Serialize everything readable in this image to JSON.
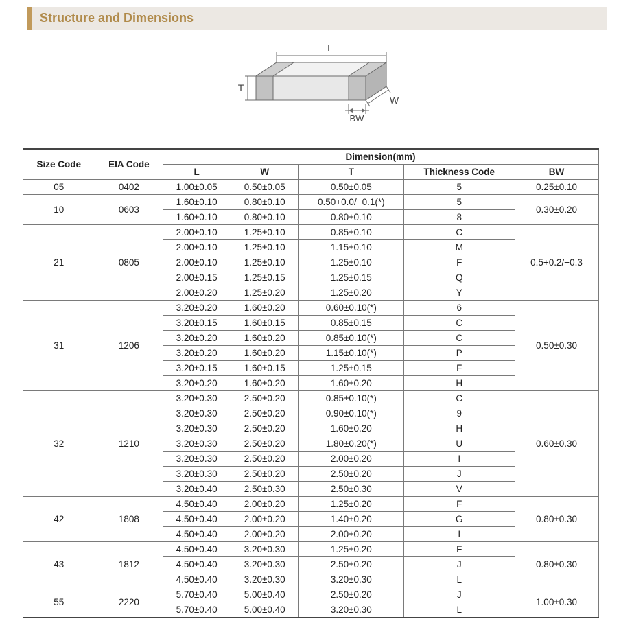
{
  "section_title": "Structure and Dimensions",
  "diagram": {
    "labels": {
      "L": "L",
      "W": "W",
      "T": "T",
      "BW": "BW"
    },
    "stroke": "#6b6b6b",
    "fill_top": "#f2f2f2",
    "fill_front": "#e8e8e8",
    "fill_side": "#dcdcdc",
    "fill_term_top": "#cfcfcf",
    "fill_term_front": "#c2c2c2",
    "fill_term_side": "#b5b5b5"
  },
  "table": {
    "header": {
      "size_code": "Size Code",
      "eia_code": "EIA Code",
      "dimension_group": "Dimension(mm)",
      "L": "L",
      "W": "W",
      "T": "T",
      "thick": "Thickness  Code",
      "BW": "BW"
    },
    "groups": [
      {
        "size": "05",
        "eia": "0402",
        "bw": "0.25±0.10",
        "rows": [
          {
            "L": "1.00±0.05",
            "W": "0.50±0.05",
            "T": "0.50±0.05",
            "code": "5"
          }
        ]
      },
      {
        "size": "10",
        "eia": "0603",
        "bw": "0.30±0.20",
        "rows": [
          {
            "L": "1.60±0.10",
            "W": "0.80±0.10",
            "T": "0.50+0.0/−0.1(*)",
            "code": "5"
          },
          {
            "L": "1.60±0.10",
            "W": "0.80±0.10",
            "T": "0.80±0.10",
            "code": "8"
          }
        ]
      },
      {
        "size": "21",
        "eia": "0805",
        "bw": "0.5+0.2/−0.3",
        "rows": [
          {
            "L": "2.00±0.10",
            "W": "1.25±0.10",
            "T": "0.85±0.10",
            "code": "C"
          },
          {
            "L": "2.00±0.10",
            "W": "1.25±0.10",
            "T": "1.15±0.10",
            "code": "M"
          },
          {
            "L": "2.00±0.10",
            "W": "1.25±0.10",
            "T": "1.25±0.10",
            "code": "F"
          },
          {
            "L": "2.00±0.15",
            "W": "1.25±0.15",
            "T": "1.25±0.15",
            "code": "Q"
          },
          {
            "L": "2.00±0.20",
            "W": "1.25±0.20",
            "T": "1.25±0.20",
            "code": "Y"
          }
        ]
      },
      {
        "size": "31",
        "eia": "1206",
        "bw": "0.50±0.30",
        "rows": [
          {
            "L": "3.20±0.20",
            "W": "1.60±0.20",
            "T": "0.60±0.10(*)",
            "code": "6"
          },
          {
            "L": "3.20±0.15",
            "W": "1.60±0.15",
            "T": "0.85±0.15",
            "code": "C"
          },
          {
            "L": "3.20±0.20",
            "W": "1.60±0.20",
            "T": "0.85±0.10(*)",
            "code": "C"
          },
          {
            "L": "3.20±0.20",
            "W": "1.60±0.20",
            "T": "1.15±0.10(*)",
            "code": "P"
          },
          {
            "L": "3.20±0.15",
            "W": "1.60±0.15",
            "T": "1.25±0.15",
            "code": "F"
          },
          {
            "L": "3.20±0.20",
            "W": "1.60±0.20",
            "T": "1.60±0.20",
            "code": "H"
          }
        ]
      },
      {
        "size": "32",
        "eia": "1210",
        "bw": "0.60±0.30",
        "rows": [
          {
            "L": "3.20±0.30",
            "W": "2.50±0.20",
            "T": "0.85±0.10(*)",
            "code": "C"
          },
          {
            "L": "3.20±0.30",
            "W": "2.50±0.20",
            "T": "0.90±0.10(*)",
            "code": "9"
          },
          {
            "L": "3.20±0.30",
            "W": "2.50±0.20",
            "T": "1.60±0.20",
            "code": "H"
          },
          {
            "L": "3.20±0.30",
            "W": "2.50±0.20",
            "T": "1.80±0.20(*)",
            "code": "U"
          },
          {
            "L": "3.20±0.30",
            "W": "2.50±0.20",
            "T": "2.00±0.20",
            "code": "I"
          },
          {
            "L": "3.20±0.30",
            "W": "2.50±0.20",
            "T": "2.50±0.20",
            "code": "J"
          },
          {
            "L": "3.20±0.40",
            "W": "2.50±0.30",
            "T": "2.50±0.30",
            "code": "V"
          }
        ]
      },
      {
        "size": "42",
        "eia": "1808",
        "bw": "0.80±0.30",
        "rows": [
          {
            "L": "4.50±0.40",
            "W": "2.00±0.20",
            "T": "1.25±0.20",
            "code": "F"
          },
          {
            "L": "4.50±0.40",
            "W": "2.00±0.20",
            "T": "1.40±0.20",
            "code": "G"
          },
          {
            "L": "4.50±0.40",
            "W": "2.00±0.20",
            "T": "2.00±0.20",
            "code": "I"
          }
        ]
      },
      {
        "size": "43",
        "eia": "1812",
        "bw": "0.80±0.30",
        "rows": [
          {
            "L": "4.50±0.40",
            "W": "3.20±0.30",
            "T": "1.25±0.20",
            "code": "F"
          },
          {
            "L": "4.50±0.40",
            "W": "3.20±0.30",
            "T": "2.50±0.20",
            "code": "J"
          },
          {
            "L": "4.50±0.40",
            "W": "3.20±0.30",
            "T": "3.20±0.30",
            "code": "L"
          }
        ]
      },
      {
        "size": "55",
        "eia": "2220",
        "bw": "1.00±0.30",
        "rows": [
          {
            "L": "5.70±0.40",
            "W": "5.00±0.40",
            "T": "2.50±0.20",
            "code": "J"
          },
          {
            "L": "5.70±0.40",
            "W": "5.00±0.40",
            "T": "3.20±0.30",
            "code": "L"
          }
        ]
      }
    ]
  },
  "colors": {
    "title_bg": "#ece8e3",
    "title_accent": "#c19a5b",
    "title_text": "#b08a4a",
    "border": "#7a7a7a",
    "text": "#222222"
  }
}
